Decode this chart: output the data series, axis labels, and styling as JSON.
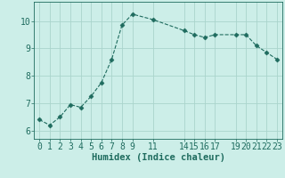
{
  "x": [
    0,
    1,
    2,
    3,
    4,
    5,
    6,
    7,
    8,
    9,
    11,
    14,
    15,
    16,
    17,
    19,
    20,
    21,
    22,
    23
  ],
  "y": [
    6.4,
    6.2,
    6.5,
    6.95,
    6.85,
    7.25,
    7.75,
    8.6,
    9.85,
    10.25,
    10.05,
    9.65,
    9.5,
    9.4,
    9.5,
    9.5,
    9.5,
    9.1,
    8.85,
    8.6
  ],
  "xticks": [
    0,
    1,
    2,
    3,
    4,
    5,
    6,
    7,
    8,
    9,
    11,
    14,
    15,
    16,
    17,
    19,
    20,
    21,
    22,
    23
  ],
  "yticks": [
    6,
    7,
    8,
    9,
    10
  ],
  "ylim": [
    5.7,
    10.7
  ],
  "xlim": [
    -0.5,
    23.5
  ],
  "xlabel": "Humidex (Indice chaleur)",
  "line_color": "#1e6b5e",
  "marker": "D",
  "marker_size": 2.5,
  "bg_color": "#cceee8",
  "grid_color": "#aad4cc",
  "axis_color": "#1e6b5e",
  "tick_color": "#1e6b5e",
  "xlabel_color": "#1e6b5e",
  "xlabel_fontsize": 7.5,
  "tick_fontsize": 7
}
